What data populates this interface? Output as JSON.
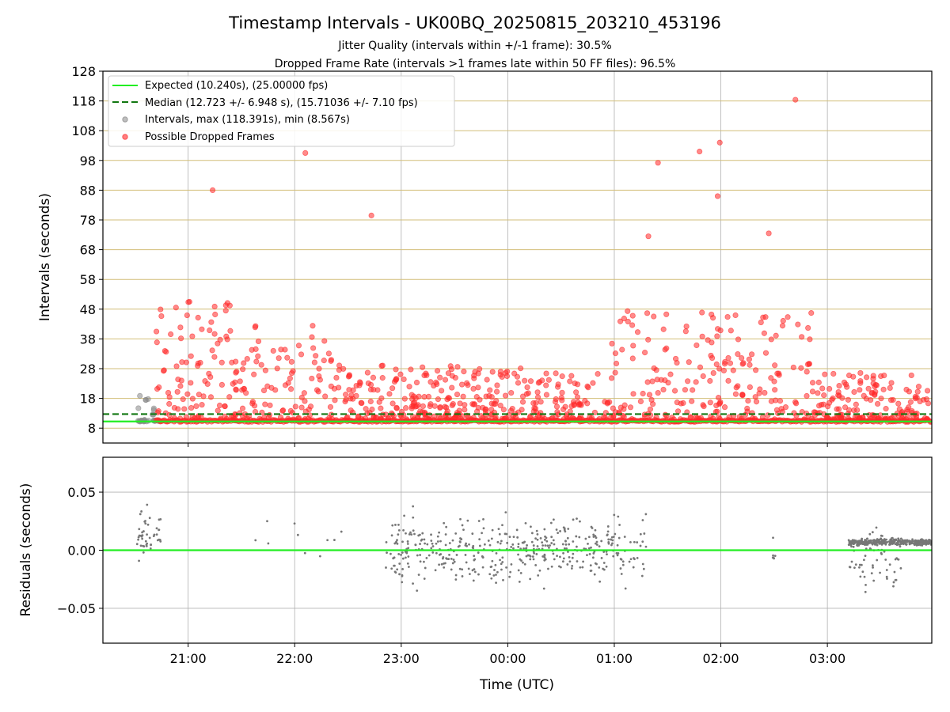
{
  "figure": {
    "title": "Timestamp Intervals - UK00BQ_20250815_203210_453196",
    "subtitle_1": "Jitter Quality (intervals within +/-1 frame): 30.5%",
    "subtitle_2": "Dropped Frame Rate (intervals >1 frames late within 50 FF files): 96.5%"
  },
  "chart_data": [
    {
      "type": "scatter",
      "name": "intervals-panel",
      "ylabel": "Intervals (seconds)",
      "xlabel": "",
      "x_unit": "hours since 00:00 UTC (axis shows clock time)",
      "xlim": [
        -3.8,
        3.98
      ],
      "ylim": [
        3,
        128
      ],
      "yticks": [
        8,
        18,
        28,
        38,
        48,
        58,
        68,
        78,
        88,
        98,
        108,
        118,
        128
      ],
      "grid": "both",
      "legend_position": "upper-left",
      "legend": [
        "Expected (10.240s), (25.00000 fps)",
        "Median (12.723 +/- 6.948 s), (15.71036 +/- 7.10 fps)",
        "Intervals, max (118.391s), min (8.567s)",
        "Possible Dropped Frames"
      ],
      "expected_line": 10.24,
      "median_line": 12.723,
      "colors": {
        "expected": "#22ee22",
        "median": "#117711",
        "intervals": "#888888",
        "dropped": "#ff2a2a",
        "reference_gridline": "#d2be78"
      }
    },
    {
      "type": "scatter",
      "name": "residuals-panel",
      "ylabel": "Residuals (seconds)",
      "xlabel": "Time (UTC)",
      "xlim": [
        -3.8,
        3.98
      ],
      "ylim": [
        -0.08,
        0.08
      ],
      "yticks": [
        -0.05,
        0.0,
        0.05
      ],
      "ytick_labels": [
        "−0.05",
        "0.00",
        "0.05"
      ],
      "xticks": [
        -3,
        -2,
        -1,
        0,
        1,
        2,
        3
      ],
      "xtick_labels": [
        "21:00",
        "22:00",
        "23:00",
        "00:00",
        "01:00",
        "02:00",
        "03:00"
      ],
      "zero_line": 0.0,
      "grid": "both"
    }
  ]
}
